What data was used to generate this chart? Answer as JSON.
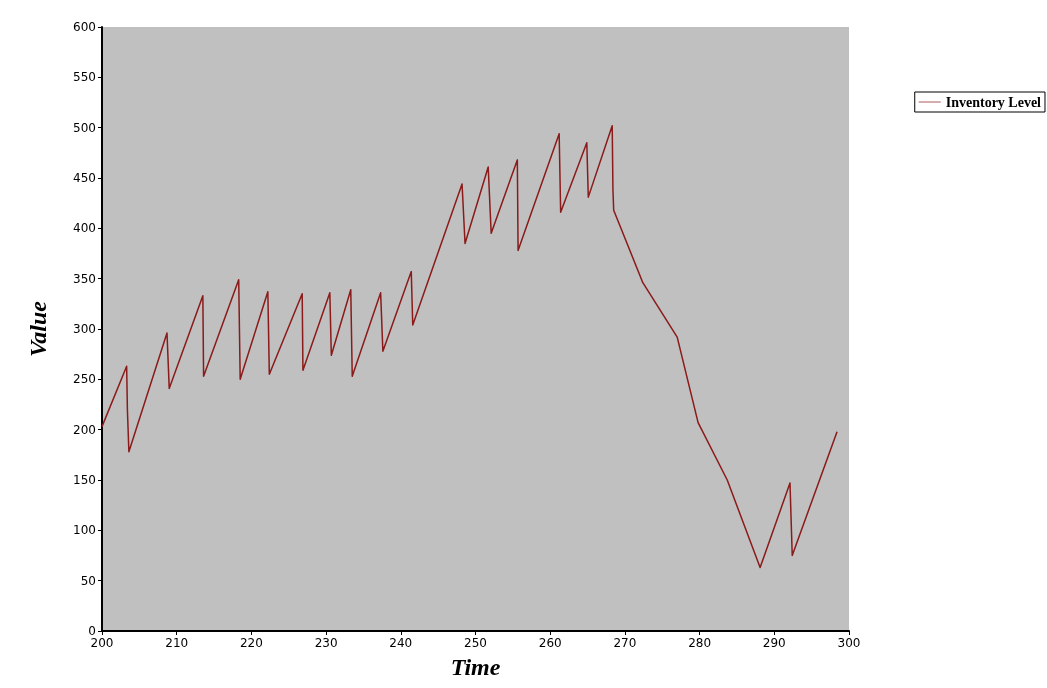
{
  "chart_data": {
    "type": "line",
    "xlabel": "Time",
    "ylabel": "Value",
    "xlim": [
      200,
      300
    ],
    "xticks": [
      200,
      210,
      220,
      230,
      240,
      250,
      260,
      270,
      280,
      290,
      300
    ],
    "ylim": [
      0,
      600
    ],
    "yticks": [
      0,
      50,
      100,
      150,
      200,
      250,
      300,
      350,
      400,
      450,
      500,
      550,
      600
    ],
    "grid": false,
    "legend": "top right",
    "marker": "none",
    "line_style": "solid",
    "series": [
      {
        "name": "Inventory Level",
        "color": "#8b1a1a",
        "x": [
          200,
          203.3,
          203.4,
          203.6,
          208.7,
          209,
          213.5,
          213.6,
          218.3,
          218.5,
          222.2,
          222.4,
          226.8,
          226.9,
          230.5,
          230.7,
          233.3,
          233.5,
          237.3,
          237.6,
          241.4,
          241.6,
          248.2,
          248.6,
          251.7,
          252.1,
          255.6,
          255.7,
          261.2,
          261.4,
          264.9,
          265.1,
          268.3,
          268.4,
          268.5,
          272.4,
          277.0,
          279.8,
          283.7,
          288.1,
          292.1,
          292.4,
          298.4
        ],
        "values": [
          203,
          263,
          220,
          178,
          296,
          241,
          333,
          253,
          349,
          250,
          337,
          255,
          335,
          259,
          336,
          274,
          339,
          253,
          336,
          278,
          357,
          304,
          444,
          385,
          461,
          395,
          468,
          378,
          494,
          416,
          485,
          431,
          502,
          438,
          418,
          346,
          292,
          207,
          150,
          63,
          147,
          75,
          198
        ]
      }
    ]
  }
}
